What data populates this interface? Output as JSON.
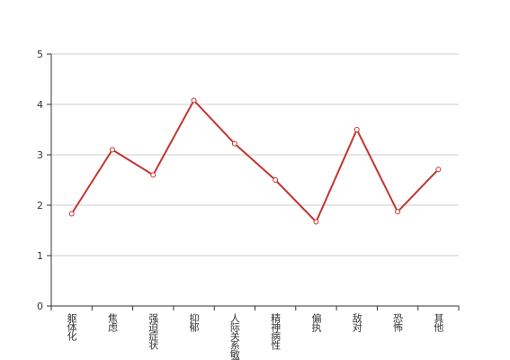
{
  "chart_data": {
    "type": "line",
    "categories": [
      "躯体化",
      "焦虑",
      "强迫症状",
      "抑郁",
      "人际关系敏感",
      "精神病性",
      "偏执",
      "敌对",
      "恐怖",
      "其他"
    ],
    "series": [
      {
        "name": null,
        "color": "#c23531",
        "values": [
          1.83,
          3.1,
          2.6,
          4.08,
          3.22,
          2.5,
          1.67,
          3.5,
          1.87,
          2.71
        ]
      }
    ],
    "ylim": [
      0,
      5
    ],
    "yticks": [
      0,
      1,
      2,
      3,
      4,
      5
    ],
    "grid": true
  }
}
